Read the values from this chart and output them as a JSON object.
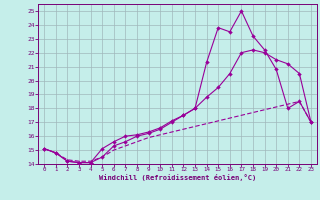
{
  "background_color": "#c5eeea",
  "grid_color": "#a0b8bc",
  "line_color": "#990099",
  "x_values": [
    0,
    1,
    2,
    3,
    4,
    5,
    6,
    7,
    8,
    9,
    10,
    11,
    12,
    13,
    14,
    15,
    16,
    17,
    18,
    19,
    20,
    21,
    22,
    23
  ],
  "line_spike": [
    15.1,
    14.8,
    14.2,
    14.1,
    14.1,
    14.5,
    15.3,
    15.6,
    16.0,
    16.2,
    16.5,
    17.0,
    17.5,
    18.0,
    21.3,
    23.8,
    23.5,
    25.0,
    23.2,
    22.2,
    20.8,
    18.0,
    18.5,
    17.0
  ],
  "line_smooth": [
    15.1,
    14.8,
    14.2,
    14.1,
    14.1,
    15.1,
    15.6,
    16.0,
    16.1,
    16.3,
    16.6,
    17.1,
    17.5,
    18.0,
    18.8,
    19.5,
    20.5,
    22.0,
    22.2,
    22.0,
    21.5,
    21.2,
    20.5,
    17.0
  ],
  "line_dashed": [
    15.1,
    14.8,
    14.3,
    14.2,
    14.2,
    14.5,
    15.0,
    15.3,
    15.6,
    15.9,
    16.1,
    16.3,
    16.5,
    16.7,
    16.9,
    17.1,
    17.3,
    17.5,
    17.7,
    17.9,
    18.1,
    18.3,
    18.5,
    17.0
  ],
  "ylim": [
    14,
    25.5
  ],
  "ytick_min": 14,
  "ytick_max": 25,
  "xticks": [
    0,
    1,
    2,
    3,
    4,
    5,
    6,
    7,
    8,
    9,
    10,
    11,
    12,
    13,
    14,
    15,
    16,
    17,
    18,
    19,
    20,
    21,
    22,
    23
  ],
  "xlabel": "Windchill (Refroidissement éolien,°C)"
}
